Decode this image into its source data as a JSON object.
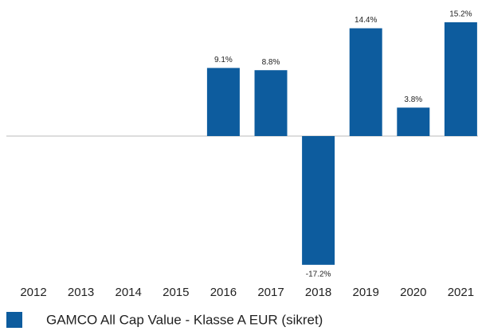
{
  "chart_data": {
    "type": "bar",
    "categories": [
      "2012",
      "2013",
      "2014",
      "2015",
      "2016",
      "2017",
      "2018",
      "2019",
      "2020",
      "2021"
    ],
    "series": [
      {
        "name": "GAMCO All Cap Value - Klasse A EUR (sikret)",
        "color": "#0d5c9e",
        "values": [
          null,
          null,
          null,
          null,
          9.1,
          8.8,
          -17.2,
          14.4,
          3.8,
          15.2
        ],
        "value_labels": [
          null,
          null,
          null,
          null,
          "9.1%",
          "8.8%",
          "-17.2%",
          "14.4%",
          "3.8%",
          "15.2%"
        ]
      }
    ]
  }
}
